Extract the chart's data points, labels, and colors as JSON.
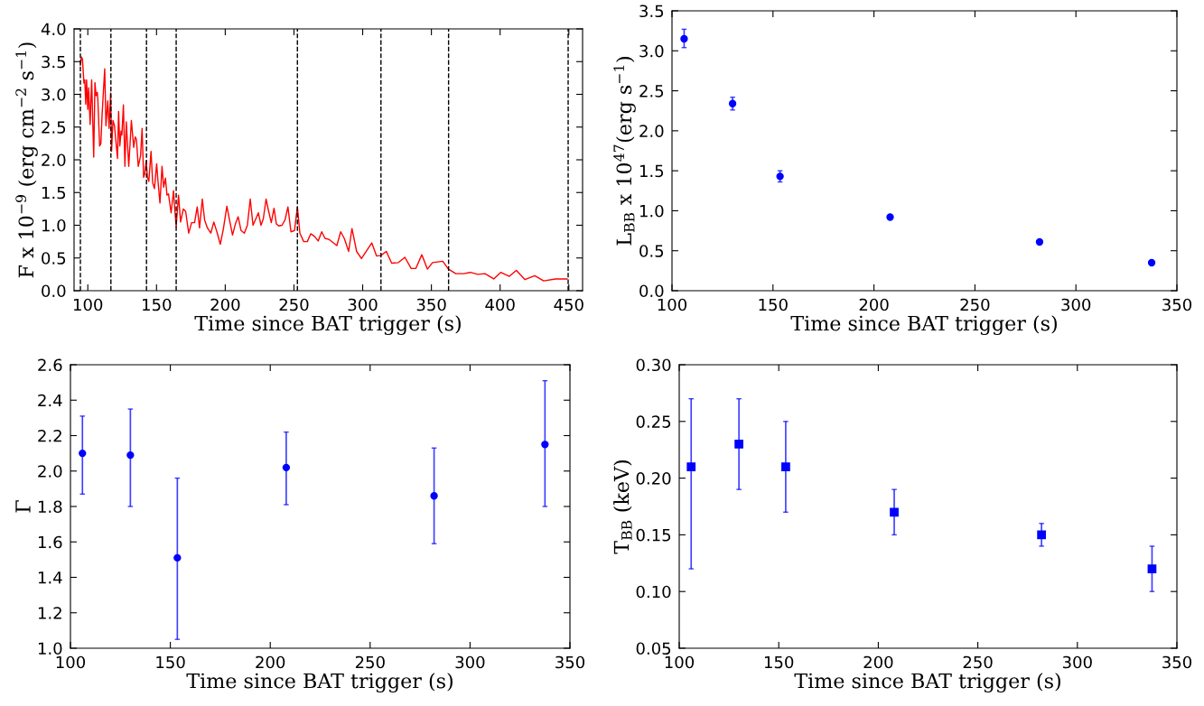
{
  "chart_data": [
    {
      "type": "line",
      "xlabel": "Time since BAT trigger (s)",
      "ylabel": "F x 10$^{−9}$ (erg cm$^{−2}$ s$^{−1}$)",
      "xlim": [
        90,
        460
      ],
      "xticks": [
        100,
        150,
        200,
        250,
        300,
        350,
        400,
        450
      ],
      "ylim": [
        0.0,
        4.0
      ],
      "yticks": [
        {
          "value": 0,
          "label": "0.0"
        },
        0.5,
        {
          "value": 1,
          "label": "1.0"
        },
        1.5,
        {
          "value": 2,
          "label": "2.0"
        },
        2.5,
        {
          "value": 3,
          "label": "3.0"
        },
        3.5,
        {
          "value": 4,
          "label": "4.0"
        }
      ],
      "grid": false,
      "legend": false,
      "marker": "none",
      "line_style": "solid",
      "series": [
        {
          "color": "#ff0000",
          "x": [
            94.6,
            95.3,
            96.1,
            97.2,
            97.8,
            98.5,
            99.1,
            100.0,
            100.6,
            101.7,
            102.8,
            104.3,
            105.2,
            106.0,
            106.9,
            107.3,
            108.6,
            109.5,
            110.4,
            112.3,
            113.2,
            114.5,
            115.5,
            116.6,
            117.3,
            118.3,
            119.4,
            121.6,
            122.4,
            123.3,
            124.2,
            124.8,
            125.9,
            127.0,
            128.0,
            129.8,
            131.7,
            133.4,
            134.5,
            135.4,
            136.7,
            138.4,
            139.5,
            140.6,
            141.4,
            142.5,
            143.4,
            144.4,
            146.0,
            147.2,
            148.5,
            150.1,
            151.0,
            152.5,
            154.0,
            155.2,
            156.5,
            157.6,
            158.7,
            160.6,
            162.4,
            163.2,
            164.3,
            166.0,
            167.5,
            169.5,
            171.2,
            173.4,
            175.5,
            177.7,
            179.6,
            181.3,
            183.3,
            185.0,
            187.0,
            189.5,
            191.7,
            193.9,
            196.4,
            198.6,
            201.2,
            203.1,
            205.3,
            207.4,
            209.4,
            211.5,
            213.9,
            216.1,
            218.2,
            220.2,
            222.3,
            224.1,
            226.0,
            227.7,
            229.7,
            231.6,
            233.5,
            235.5,
            237.2,
            238.9,
            241.3,
            243.5,
            245.6,
            247.8,
            250.4,
            252.5,
            254.3,
            257.1,
            259.7,
            262.2,
            265.0,
            267.6,
            270.2,
            272.6,
            275.8,
            281.2,
            284.0,
            286.6,
            289.8,
            292.2,
            295.6,
            299.1,
            306.6,
            310.1,
            313.3,
            317.2,
            321.1,
            326.0,
            330.7,
            335.3,
            338.7,
            343.0,
            347.1,
            350.8,
            358.3,
            362.4,
            367.8,
            373.4,
            378.4,
            383.8,
            389.0,
            395.4,
            400.4,
            406.7,
            411.8,
            418.1,
            425.2,
            431.7,
            440.3,
            448.7
          ],
          "values": [
            3.44,
            3.57,
            3.54,
            3.17,
            3.22,
            2.85,
            3.22,
            2.77,
            3.1,
            2.54,
            3.22,
            2.04,
            3.18,
            2.98,
            3.03,
            2.92,
            2.21,
            2.25,
            2.69,
            3.39,
            2.52,
            2.9,
            2.48,
            3.02,
            2.13,
            2.6,
            2.52,
            2.02,
            2.74,
            2.21,
            2.44,
            2.38,
            2.84,
            1.9,
            2.58,
            1.9,
            2.6,
            2.19,
            2.35,
            2.31,
            1.9,
            2.06,
            2.48,
            1.73,
            1.79,
            1.98,
            1.73,
            1.67,
            2.13,
            1.65,
            1.56,
            1.94,
            1.69,
            1.34,
            1.9,
            1.58,
            1.72,
            1.46,
            1.48,
            1.19,
            1.53,
            1.27,
            0.98,
            1.46,
            1.05,
            1.25,
            1.21,
            0.88,
            1.04,
            1.04,
            1.28,
            0.96,
            1.4,
            1.08,
            0.96,
            0.88,
            1.05,
            0.9,
            0.71,
            0.94,
            1.29,
            1.08,
            0.85,
            1.02,
            1.13,
            0.92,
            0.88,
            1.0,
            1.4,
            1.0,
            1.1,
            1.19,
            1.0,
            1.1,
            1.4,
            1.21,
            1.04,
            1.26,
            1.02,
            0.99,
            1.0,
            1.08,
            1.28,
            0.9,
            0.92,
            1.28,
            0.88,
            0.75,
            0.75,
            0.87,
            0.83,
            0.76,
            0.9,
            0.8,
            0.78,
            0.69,
            0.9,
            0.8,
            0.6,
            0.95,
            0.6,
            0.49,
            0.73,
            0.53,
            0.54,
            0.6,
            0.42,
            0.43,
            0.51,
            0.34,
            0.34,
            0.55,
            0.33,
            0.43,
            0.45,
            0.33,
            0.26,
            0.26,
            0.28,
            0.25,
            0.26,
            0.18,
            0.28,
            0.22,
            0.31,
            0.17,
            0.23,
            0.15,
            0.18,
            0.18
          ]
        }
      ],
      "ref_lines": [
        {
          "axis": "x",
          "value": 94.6,
          "color": "#000000",
          "line_style": "dashed"
        },
        {
          "axis": "x",
          "value": 116.8,
          "color": "#000000",
          "line_style": "dashed"
        },
        {
          "axis": "x",
          "value": 142.7,
          "color": "#000000",
          "line_style": "dashed"
        },
        {
          "axis": "x",
          "value": 164.3,
          "color": "#000000",
          "line_style": "dashed"
        },
        {
          "axis": "x",
          "value": 252.5,
          "color": "#000000",
          "line_style": "dashed"
        },
        {
          "axis": "x",
          "value": 313.3,
          "color": "#000000",
          "line_style": "dashed"
        },
        {
          "axis": "x",
          "value": 362.5,
          "color": "#000000",
          "line_style": "dashed"
        },
        {
          "axis": "x",
          "value": 449.5,
          "color": "#000000",
          "line_style": "dashed"
        }
      ]
    },
    {
      "type": "scatter",
      "xlabel": "Time since BAT trigger (s)",
      "ylabel": "L$_{BB}$ x 10$^{47}$(erg s$^{−1}$)",
      "xlim": [
        100,
        350
      ],
      "xticks": [
        100,
        150,
        200,
        250,
        300,
        350
      ],
      "ylim": [
        0.0,
        3.5
      ],
      "yticks": [
        {
          "value": 0,
          "label": "0.0"
        },
        0.5,
        {
          "value": 1,
          "label": "1.0"
        },
        1.5,
        {
          "value": 2,
          "label": "2.0"
        },
        2.5,
        {
          "value": 3,
          "label": "3.0"
        },
        3.5
      ],
      "grid": false,
      "legend": false,
      "marker": "circle",
      "series": [
        {
          "color": "#0000ff",
          "x": [
            106,
            130,
            153.5,
            208,
            282,
            337.5
          ],
          "values": [
            3.15,
            2.34,
            1.43,
            0.92,
            0.61,
            0.35
          ],
          "errors": [
            [
              3.04,
              3.27
            ],
            [
              2.26,
              2.42
            ],
            [
              1.36,
              1.5
            ],
            null,
            null,
            null
          ]
        }
      ]
    },
    {
      "type": "scatter",
      "xlabel": "Time since BAT trigger (s)",
      "ylabel": "Γ",
      "xlim": [
        100,
        350
      ],
      "xticks": [
        100,
        150,
        200,
        250,
        300,
        350
      ],
      "ylim": [
        1.0,
        2.6
      ],
      "yticks": [
        {
          "value": 1,
          "label": "1.0"
        },
        1.2,
        1.4,
        1.6,
        1.8,
        {
          "value": 2,
          "label": "2.0"
        },
        2.2,
        2.4,
        2.6
      ],
      "grid": false,
      "legend": false,
      "marker": "circle",
      "series": [
        {
          "color": "#0000ff",
          "x": [
            106,
            130,
            153.5,
            208,
            282,
            337.5
          ],
          "values": [
            2.1,
            2.09,
            1.51,
            2.02,
            1.86,
            2.15
          ],
          "errors": [
            [
              1.87,
              2.31
            ],
            [
              1.8,
              2.35
            ],
            [
              1.05,
              1.96
            ],
            [
              1.81,
              2.22
            ],
            [
              1.59,
              2.13
            ],
            [
              1.8,
              2.51
            ]
          ]
        }
      ]
    },
    {
      "type": "scatter",
      "xlabel": "Time since BAT trigger (s)",
      "ylabel": "T$_{BB}$ (keV)",
      "xlim": [
        100,
        350
      ],
      "xticks": [
        100,
        150,
        200,
        250,
        300,
        350
      ],
      "ylim": [
        0.05,
        0.3
      ],
      "yticks": [
        {
          "value": 0.05,
          "label": "0.05"
        },
        {
          "value": 0.1,
          "label": "0.10"
        },
        {
          "value": 0.15,
          "label": "0.15"
        },
        {
          "value": 0.2,
          "label": "0.20"
        },
        {
          "value": 0.25,
          "label": "0.25"
        },
        {
          "value": 0.3,
          "label": "0.30"
        }
      ],
      "grid": false,
      "legend": false,
      "marker": "square",
      "series": [
        {
          "color": "#0000ff",
          "x": [
            106,
            130,
            153.5,
            208,
            282,
            337.5
          ],
          "values": [
            0.21,
            0.23,
            0.21,
            0.17,
            0.15,
            0.12
          ],
          "errors": [
            [
              0.12,
              0.27
            ],
            [
              0.19,
              0.27
            ],
            [
              0.17,
              0.25
            ],
            [
              0.15,
              0.19
            ],
            [
              0.14,
              0.16
            ],
            [
              0.1,
              0.14
            ]
          ]
        }
      ]
    }
  ]
}
